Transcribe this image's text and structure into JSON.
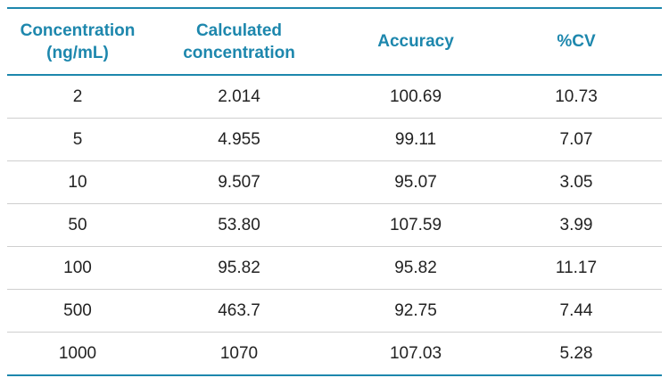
{
  "table": {
    "header": [
      [
        "Concentration",
        "(ng/mL)"
      ],
      [
        "Calculated",
        "concentration"
      ],
      [
        "Accuracy"
      ],
      [
        "%CV"
      ]
    ],
    "rows": [
      [
        "2",
        "2.014",
        "100.69",
        "10.73"
      ],
      [
        "5",
        "4.955",
        "99.11",
        "7.07"
      ],
      [
        "10",
        "9.507",
        "95.07",
        "3.05"
      ],
      [
        "50",
        "53.80",
        "107.59",
        "3.99"
      ],
      [
        "100",
        "95.82",
        "95.82",
        "11.17"
      ],
      [
        "500",
        "463.7",
        "92.75",
        "7.44"
      ],
      [
        "1000",
        "1070",
        "107.03",
        "5.28"
      ]
    ]
  }
}
